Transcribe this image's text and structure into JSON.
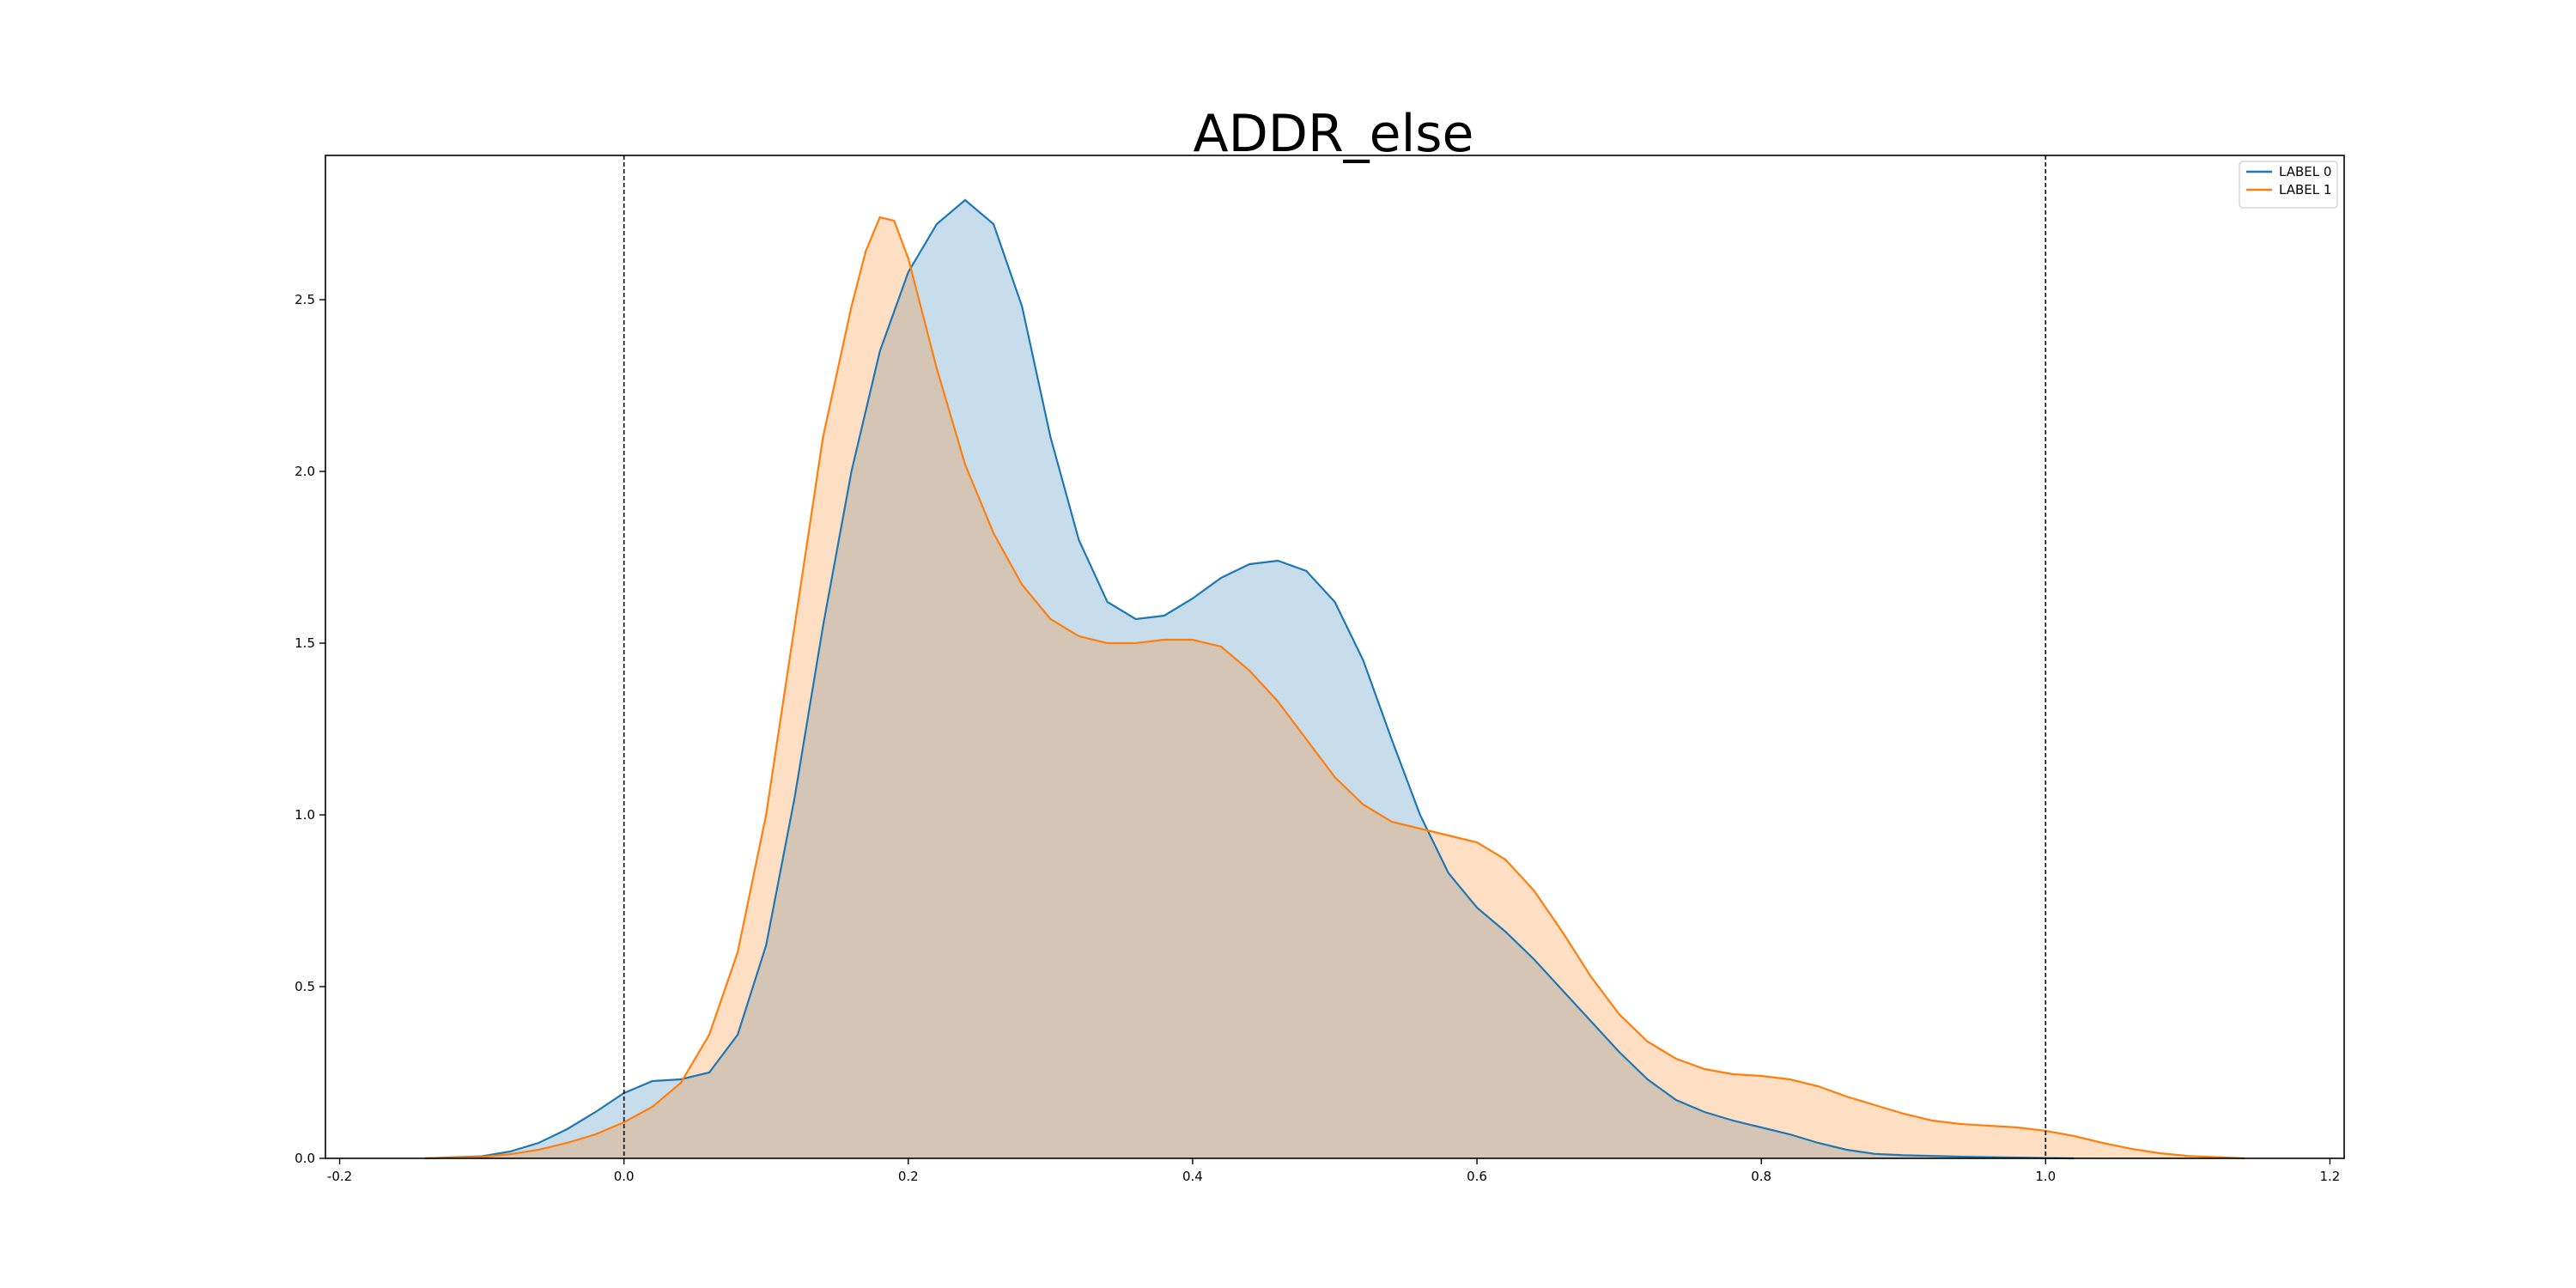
{
  "chart_data": {
    "type": "area",
    "title": "ADDR_else",
    "xlabel": "",
    "ylabel": "",
    "xlim": [
      -0.21,
      1.21
    ],
    "ylim": [
      0,
      2.92
    ],
    "x_ticks": [
      -0.2,
      0.0,
      0.2,
      0.4,
      0.6,
      0.8,
      1.0,
      1.2
    ],
    "x_tick_labels": [
      "-0.2",
      "0.0",
      "0.2",
      "0.4",
      "0.6",
      "0.8",
      "1.0",
      "1.2"
    ],
    "y_ticks": [
      0.0,
      0.5,
      1.0,
      1.5,
      2.0,
      2.5
    ],
    "y_tick_labels": [
      "0.0",
      "0.5",
      "1.0",
      "1.5",
      "2.0",
      "2.5"
    ],
    "vlines": [
      0.0,
      1.0
    ],
    "grid": false,
    "legend": {
      "position": "top-right"
    },
    "series": [
      {
        "name": "LABEL 0",
        "color": "#1f77b4",
        "fill": "#c6dbed",
        "points": [
          [
            -0.14,
            0.0
          ],
          [
            -0.1,
            0.006
          ],
          [
            -0.08,
            0.02
          ],
          [
            -0.06,
            0.045
          ],
          [
            -0.04,
            0.085
          ],
          [
            -0.02,
            0.135
          ],
          [
            0.0,
            0.19
          ],
          [
            0.02,
            0.225
          ],
          [
            0.04,
            0.23
          ],
          [
            0.06,
            0.25
          ],
          [
            0.08,
            0.36
          ],
          [
            0.1,
            0.62
          ],
          [
            0.12,
            1.05
          ],
          [
            0.14,
            1.55
          ],
          [
            0.16,
            2.0
          ],
          [
            0.18,
            2.35
          ],
          [
            0.2,
            2.58
          ],
          [
            0.22,
            2.72
          ],
          [
            0.24,
            2.79
          ],
          [
            0.26,
            2.72
          ],
          [
            0.28,
            2.48
          ],
          [
            0.3,
            2.1
          ],
          [
            0.32,
            1.8
          ],
          [
            0.34,
            1.62
          ],
          [
            0.36,
            1.57
          ],
          [
            0.38,
            1.58
          ],
          [
            0.4,
            1.63
          ],
          [
            0.42,
            1.69
          ],
          [
            0.44,
            1.73
          ],
          [
            0.46,
            1.74
          ],
          [
            0.48,
            1.71
          ],
          [
            0.5,
            1.62
          ],
          [
            0.52,
            1.45
          ],
          [
            0.54,
            1.22
          ],
          [
            0.56,
            1.0
          ],
          [
            0.58,
            0.83
          ],
          [
            0.6,
            0.73
          ],
          [
            0.62,
            0.66
          ],
          [
            0.64,
            0.58
          ],
          [
            0.66,
            0.49
          ],
          [
            0.68,
            0.4
          ],
          [
            0.7,
            0.31
          ],
          [
            0.72,
            0.23
          ],
          [
            0.74,
            0.17
          ],
          [
            0.76,
            0.135
          ],
          [
            0.78,
            0.11
          ],
          [
            0.8,
            0.09
          ],
          [
            0.82,
            0.07
          ],
          [
            0.84,
            0.045
          ],
          [
            0.86,
            0.025
          ],
          [
            0.88,
            0.013
          ],
          [
            0.9,
            0.009
          ],
          [
            0.95,
            0.004
          ],
          [
            1.0,
            0.001
          ],
          [
            1.02,
            0.0
          ]
        ]
      },
      {
        "name": "LABEL 1",
        "color": "#ff7f0e",
        "fill": "#fdd9bc",
        "points": [
          [
            -0.14,
            0.0
          ],
          [
            -0.1,
            0.004
          ],
          [
            -0.08,
            0.012
          ],
          [
            -0.06,
            0.025
          ],
          [
            -0.04,
            0.045
          ],
          [
            -0.02,
            0.07
          ],
          [
            0.0,
            0.105
          ],
          [
            0.02,
            0.15
          ],
          [
            0.04,
            0.22
          ],
          [
            0.06,
            0.36
          ],
          [
            0.08,
            0.6
          ],
          [
            0.1,
            1.0
          ],
          [
            0.12,
            1.55
          ],
          [
            0.14,
            2.1
          ],
          [
            0.16,
            2.48
          ],
          [
            0.17,
            2.64
          ],
          [
            0.18,
            2.74
          ],
          [
            0.19,
            2.73
          ],
          [
            0.2,
            2.62
          ],
          [
            0.22,
            2.3
          ],
          [
            0.24,
            2.02
          ],
          [
            0.26,
            1.82
          ],
          [
            0.28,
            1.67
          ],
          [
            0.3,
            1.57
          ],
          [
            0.32,
            1.52
          ],
          [
            0.34,
            1.5
          ],
          [
            0.36,
            1.5
          ],
          [
            0.38,
            1.51
          ],
          [
            0.4,
            1.51
          ],
          [
            0.42,
            1.49
          ],
          [
            0.44,
            1.42
          ],
          [
            0.46,
            1.33
          ],
          [
            0.48,
            1.22
          ],
          [
            0.5,
            1.11
          ],
          [
            0.52,
            1.03
          ],
          [
            0.54,
            0.98
          ],
          [
            0.56,
            0.96
          ],
          [
            0.58,
            0.94
          ],
          [
            0.6,
            0.92
          ],
          [
            0.62,
            0.87
          ],
          [
            0.64,
            0.78
          ],
          [
            0.66,
            0.66
          ],
          [
            0.68,
            0.53
          ],
          [
            0.7,
            0.42
          ],
          [
            0.72,
            0.34
          ],
          [
            0.74,
            0.29
          ],
          [
            0.76,
            0.26
          ],
          [
            0.78,
            0.245
          ],
          [
            0.8,
            0.24
          ],
          [
            0.82,
            0.23
          ],
          [
            0.84,
            0.21
          ],
          [
            0.86,
            0.18
          ],
          [
            0.88,
            0.155
          ],
          [
            0.9,
            0.13
          ],
          [
            0.92,
            0.11
          ],
          [
            0.94,
            0.1
          ],
          [
            0.96,
            0.095
          ],
          [
            0.98,
            0.09
          ],
          [
            1.0,
            0.08
          ],
          [
            1.02,
            0.065
          ],
          [
            1.04,
            0.045
          ],
          [
            1.06,
            0.028
          ],
          [
            1.08,
            0.015
          ],
          [
            1.1,
            0.007
          ],
          [
            1.14,
            0.0
          ]
        ]
      }
    ]
  }
}
